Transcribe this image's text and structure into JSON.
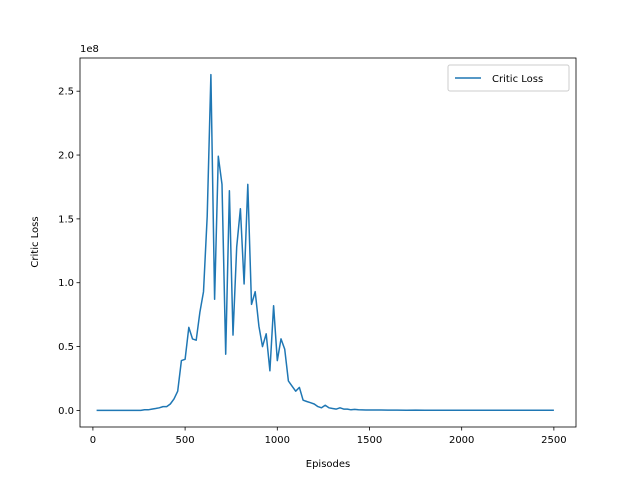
{
  "chart_data": {
    "type": "line",
    "title": "",
    "xlabel": "Episodes",
    "ylabel": "Critic Loss",
    "y_scale_label": "1e8",
    "xlim": [
      -70,
      2620
    ],
    "ylim": [
      -0.13,
      2.76
    ],
    "x_ticks": [
      0,
      500,
      1000,
      1500,
      2000,
      2500
    ],
    "x_tick_labels": [
      "0",
      "500",
      "1000",
      "1500",
      "2000",
      "2500"
    ],
    "y_ticks": [
      0.0,
      0.5,
      1.0,
      1.5,
      2.0,
      2.5
    ],
    "y_tick_labels": [
      "0.0",
      "0.5",
      "1.0",
      "1.5",
      "2.0",
      "2.5"
    ],
    "grid": false,
    "legend_position": "top-right",
    "series": [
      {
        "name": "Critic Loss",
        "color": "#1f77b4",
        "x": [
          20,
          40,
          60,
          80,
          100,
          120,
          140,
          160,
          180,
          200,
          220,
          240,
          260,
          280,
          300,
          320,
          340,
          360,
          380,
          400,
          420,
          440,
          460,
          480,
          500,
          520,
          540,
          560,
          580,
          600,
          620,
          640,
          660,
          680,
          700,
          720,
          740,
          760,
          780,
          800,
          820,
          840,
          860,
          880,
          900,
          920,
          940,
          960,
          980,
          1000,
          1020,
          1040,
          1060,
          1080,
          1100,
          1120,
          1140,
          1160,
          1180,
          1200,
          1220,
          1240,
          1260,
          1280,
          1300,
          1320,
          1340,
          1360,
          1380,
          1400,
          1420,
          1440,
          1460,
          1480,
          1500,
          1550,
          1600,
          1650,
          1700,
          1750,
          1800,
          1850,
          1900,
          1950,
          2000,
          2050,
          2100,
          2150,
          2200,
          2250,
          2300,
          2350,
          2400,
          2450,
          2500
        ],
        "y": [
          0.0,
          0.0,
          0.0,
          0.0,
          0.0,
          0.0,
          0.0,
          0.0,
          0.0,
          0.0,
          0.0,
          0.0,
          0.0,
          0.005,
          0.005,
          0.01,
          0.015,
          0.02,
          0.03,
          0.03,
          0.05,
          0.09,
          0.15,
          0.39,
          0.4,
          0.65,
          0.56,
          0.55,
          0.77,
          0.93,
          1.52,
          2.63,
          0.87,
          1.99,
          1.77,
          0.44,
          1.72,
          0.59,
          1.28,
          1.58,
          0.99,
          1.77,
          0.83,
          0.93,
          0.66,
          0.5,
          0.6,
          0.31,
          0.82,
          0.39,
          0.56,
          0.48,
          0.23,
          0.19,
          0.15,
          0.18,
          0.08,
          0.07,
          0.06,
          0.05,
          0.03,
          0.02,
          0.04,
          0.02,
          0.015,
          0.01,
          0.02,
          0.01,
          0.01,
          0.005,
          0.008,
          0.005,
          0.004,
          0.003,
          0.003,
          0.003,
          0.002,
          0.002,
          0.001,
          0.002,
          0.001,
          0.001,
          0.001,
          0.001,
          0.001,
          0.001,
          0.001,
          0.001,
          0.001,
          0.001,
          0.001,
          0.001,
          0.001,
          0.001,
          0.001
        ]
      }
    ]
  }
}
